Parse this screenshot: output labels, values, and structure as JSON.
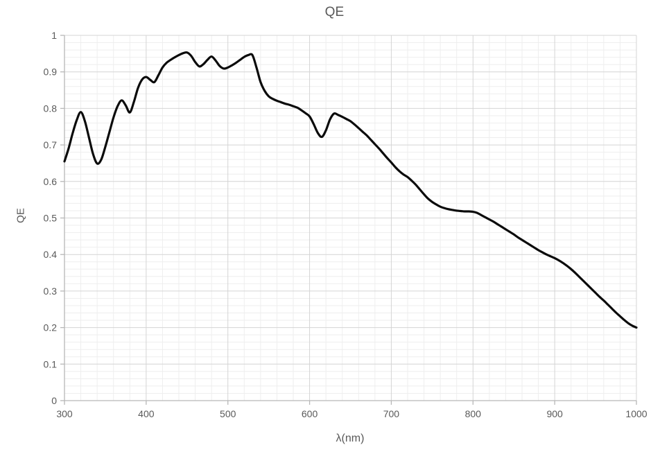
{
  "chart_data": {
    "type": "line",
    "title": "QE",
    "xlabel": "λ(nm)",
    "ylabel": "QE",
    "xlim": [
      300,
      1000
    ],
    "ylim": [
      0,
      1
    ],
    "grid": "major and minor, both axes",
    "legend_position": "none",
    "x_major_ticks": [
      300,
      400,
      500,
      600,
      700,
      800,
      900,
      1000
    ],
    "x_tick_labels": [
      "300",
      "400",
      "500",
      "600",
      "700",
      "800",
      "900",
      "1000"
    ],
    "x_minor_step": 20,
    "y_major_ticks": [
      0,
      0.1,
      0.2,
      0.3,
      0.4,
      0.5,
      0.6,
      0.7,
      0.8,
      0.9,
      1
    ],
    "y_tick_labels": [
      "0",
      "0.1",
      "0.2",
      "0.3",
      "0.4",
      "0.5",
      "0.6",
      "0.7",
      "0.8",
      "0.9",
      "1"
    ],
    "y_minor_step": 0.02,
    "colors": {
      "line": "#0b0b0b",
      "major_grid": "#d4d4d4",
      "minor_grid": "#eeeeee",
      "axis": "#b7b7b7",
      "text": "#595959",
      "background": "#ffffff"
    },
    "series": [
      {
        "name": "QE",
        "color": "#0b0b0b",
        "points": [
          [
            300,
            0.655
          ],
          [
            305,
            0.69
          ],
          [
            310,
            0.732
          ],
          [
            315,
            0.768
          ],
          [
            320,
            0.79
          ],
          [
            325,
            0.765
          ],
          [
            330,
            0.72
          ],
          [
            335,
            0.675
          ],
          [
            340,
            0.649
          ],
          [
            345,
            0.66
          ],
          [
            350,
            0.695
          ],
          [
            355,
            0.735
          ],
          [
            360,
            0.775
          ],
          [
            365,
            0.806
          ],
          [
            370,
            0.822
          ],
          [
            375,
            0.808
          ],
          [
            380,
            0.789
          ],
          [
            385,
            0.818
          ],
          [
            390,
            0.856
          ],
          [
            395,
            0.879
          ],
          [
            400,
            0.886
          ],
          [
            405,
            0.878
          ],
          [
            410,
            0.872
          ],
          [
            415,
            0.891
          ],
          [
            420,
            0.912
          ],
          [
            425,
            0.925
          ],
          [
            430,
            0.933
          ],
          [
            435,
            0.94
          ],
          [
            440,
            0.946
          ],
          [
            445,
            0.951
          ],
          [
            450,
            0.953
          ],
          [
            455,
            0.944
          ],
          [
            460,
            0.927
          ],
          [
            465,
            0.915
          ],
          [
            470,
            0.921
          ],
          [
            475,
            0.933
          ],
          [
            480,
            0.942
          ],
          [
            485,
            0.931
          ],
          [
            490,
            0.916
          ],
          [
            495,
            0.909
          ],
          [
            500,
            0.912
          ],
          [
            505,
            0.918
          ],
          [
            510,
            0.925
          ],
          [
            515,
            0.933
          ],
          [
            520,
            0.941
          ],
          [
            525,
            0.946
          ],
          [
            530,
            0.946
          ],
          [
            535,
            0.912
          ],
          [
            540,
            0.872
          ],
          [
            545,
            0.848
          ],
          [
            550,
            0.833
          ],
          [
            555,
            0.826
          ],
          [
            560,
            0.821
          ],
          [
            565,
            0.817
          ],
          [
            570,
            0.813
          ],
          [
            575,
            0.81
          ],
          [
            580,
            0.806
          ],
          [
            585,
            0.802
          ],
          [
            590,
            0.795
          ],
          [
            595,
            0.787
          ],
          [
            600,
            0.778
          ],
          [
            605,
            0.757
          ],
          [
            610,
            0.733
          ],
          [
            615,
            0.722
          ],
          [
            620,
            0.74
          ],
          [
            625,
            0.77
          ],
          [
            630,
            0.786
          ],
          [
            635,
            0.782
          ],
          [
            640,
            0.777
          ],
          [
            645,
            0.771
          ],
          [
            650,
            0.765
          ],
          [
            655,
            0.756
          ],
          [
            660,
            0.746
          ],
          [
            665,
            0.736
          ],
          [
            670,
            0.726
          ],
          [
            675,
            0.714
          ],
          [
            680,
            0.702
          ],
          [
            685,
            0.69
          ],
          [
            690,
            0.677
          ],
          [
            695,
            0.664
          ],
          [
            700,
            0.652
          ],
          [
            705,
            0.639
          ],
          [
            710,
            0.628
          ],
          [
            715,
            0.619
          ],
          [
            720,
            0.612
          ],
          [
            725,
            0.602
          ],
          [
            730,
            0.591
          ],
          [
            735,
            0.578
          ],
          [
            740,
            0.565
          ],
          [
            745,
            0.553
          ],
          [
            750,
            0.544
          ],
          [
            755,
            0.537
          ],
          [
            760,
            0.531
          ],
          [
            765,
            0.527
          ],
          [
            770,
            0.524
          ],
          [
            775,
            0.522
          ],
          [
            780,
            0.52
          ],
          [
            785,
            0.519
          ],
          [
            790,
            0.518
          ],
          [
            795,
            0.518
          ],
          [
            800,
            0.517
          ],
          [
            805,
            0.514
          ],
          [
            810,
            0.508
          ],
          [
            815,
            0.502
          ],
          [
            820,
            0.496
          ],
          [
            825,
            0.49
          ],
          [
            830,
            0.483
          ],
          [
            835,
            0.476
          ],
          [
            840,
            0.469
          ],
          [
            845,
            0.462
          ],
          [
            850,
            0.455
          ],
          [
            855,
            0.447
          ],
          [
            860,
            0.44
          ],
          [
            865,
            0.433
          ],
          [
            870,
            0.426
          ],
          [
            875,
            0.419
          ],
          [
            880,
            0.412
          ],
          [
            885,
            0.406
          ],
          [
            890,
            0.4
          ],
          [
            895,
            0.395
          ],
          [
            900,
            0.39
          ],
          [
            905,
            0.384
          ],
          [
            910,
            0.377
          ],
          [
            915,
            0.369
          ],
          [
            920,
            0.36
          ],
          [
            925,
            0.35
          ],
          [
            930,
            0.339
          ],
          [
            935,
            0.328
          ],
          [
            940,
            0.317
          ],
          [
            945,
            0.306
          ],
          [
            950,
            0.295
          ],
          [
            955,
            0.284
          ],
          [
            960,
            0.274
          ],
          [
            965,
            0.263
          ],
          [
            970,
            0.252
          ],
          [
            975,
            0.241
          ],
          [
            980,
            0.231
          ],
          [
            985,
            0.221
          ],
          [
            990,
            0.212
          ],
          [
            995,
            0.205
          ],
          [
            1000,
            0.2
          ]
        ]
      }
    ]
  }
}
